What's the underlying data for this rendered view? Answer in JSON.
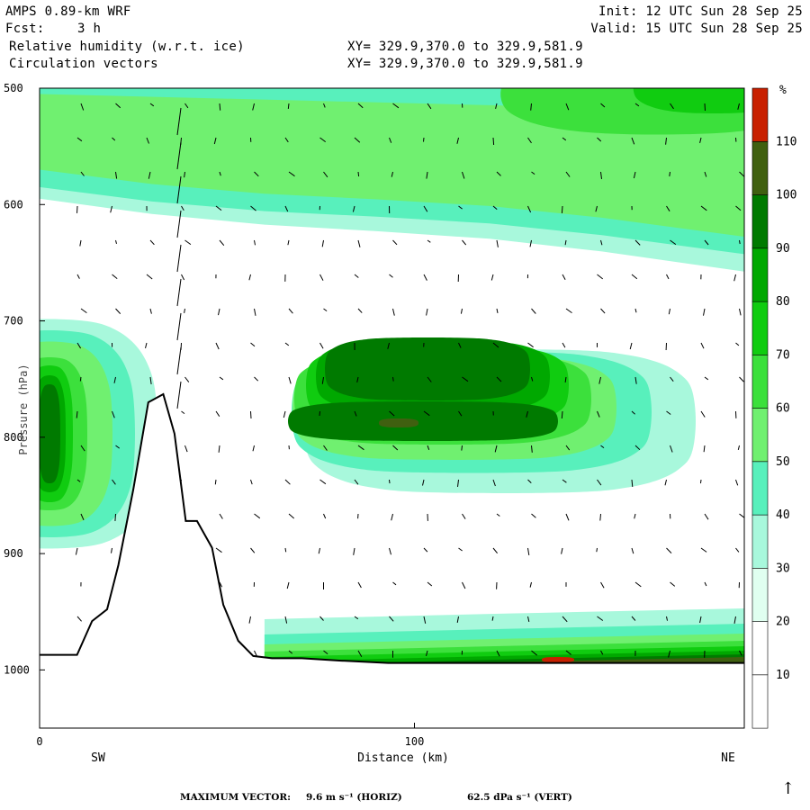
{
  "header": {
    "model": "AMPS 0.89-km WRF",
    "fcst_label": "Fcst:",
    "fcst_value": "3 h",
    "init": "Init: 12 UTC Sun 28 Sep 25",
    "valid": "Valid: 15 UTC Sun 28 Sep 25",
    "field1": "Relative humidity (w.r.t. ice)",
    "field2": "Circulation vectors",
    "xy1": "XY= 329.9,370.0 to 329.9,581.9",
    "xy2": "XY= 329.9,370.0 to 329.9,581.9"
  },
  "footer": {
    "max_vector_label": "MAXIMUM VECTOR:",
    "horiz": "9.6 m s⁻¹ (HORIZ)",
    "vert": "62.5 dPa s⁻¹ (VERT)",
    "ref_arrow": "↑"
  },
  "chart_data": {
    "type": "heatmap",
    "title": "Relative humidity (w.r.t. ice)",
    "xlabel": "Distance (km)",
    "ylabel": "Pressure (hPa)",
    "x_range": [
      0,
      188
    ],
    "y_range": [
      1050,
      500
    ],
    "y_reversed": true,
    "x_ticks": [
      0,
      100
    ],
    "y_ticks": [
      500,
      600,
      700,
      800,
      900,
      1000
    ],
    "direction_labels": [
      "SW",
      "NE"
    ],
    "colorbar": {
      "unit": "%",
      "levels": [
        10,
        20,
        30,
        40,
        50,
        60,
        70,
        80,
        90,
        100,
        110
      ],
      "colors": [
        "#ffffff",
        "#ffffff",
        "#e0fff0",
        "#a8f8dc",
        "#58f0bc",
        "#70f070",
        "#3ce03c",
        "#10cc10",
        "#00a800",
        "#007a00",
        "#406010",
        "#c82000"
      ]
    },
    "terrain_profile": {
      "x": [
        0,
        10,
        14,
        18,
        21,
        25,
        29,
        33,
        36,
        39,
        42,
        46,
        49,
        53,
        57,
        62,
        66,
        70,
        80,
        93,
        120,
        150,
        188
      ],
      "p": [
        987,
        987,
        958,
        948,
        910,
        845,
        770,
        763,
        797,
        872,
        872,
        895,
        944,
        975,
        988,
        990,
        990,
        990,
        992,
        994,
        994,
        994,
        994
      ]
    },
    "rh_regions": [
      {
        "level": 30,
        "description": "upper moist band",
        "x": [
          0,
          188
        ],
        "p": [
          500,
          650
        ]
      },
      {
        "level": 70,
        "description": "upper-right maximum",
        "x": [
          125,
          188
        ],
        "p": [
          500,
          540
        ]
      },
      {
        "level": 90,
        "description": "mid-level cloud layer core",
        "x": [
          68,
          140
        ],
        "p": [
          770,
          820
        ]
      },
      {
        "level": 90,
        "description": "left-edge maximum",
        "x": [
          0,
          8
        ],
        "p": [
          770,
          820
        ]
      },
      {
        "level": 110,
        "description": "surface layer maximum",
        "x": [
          135,
          188
        ],
        "p": [
          985,
          994
        ]
      }
    ],
    "max_vector": {
      "horiz": 9.6,
      "horiz_unit": "m s⁻¹",
      "vert": 62.5,
      "vert_unit": "dPa s⁻¹"
    }
  }
}
